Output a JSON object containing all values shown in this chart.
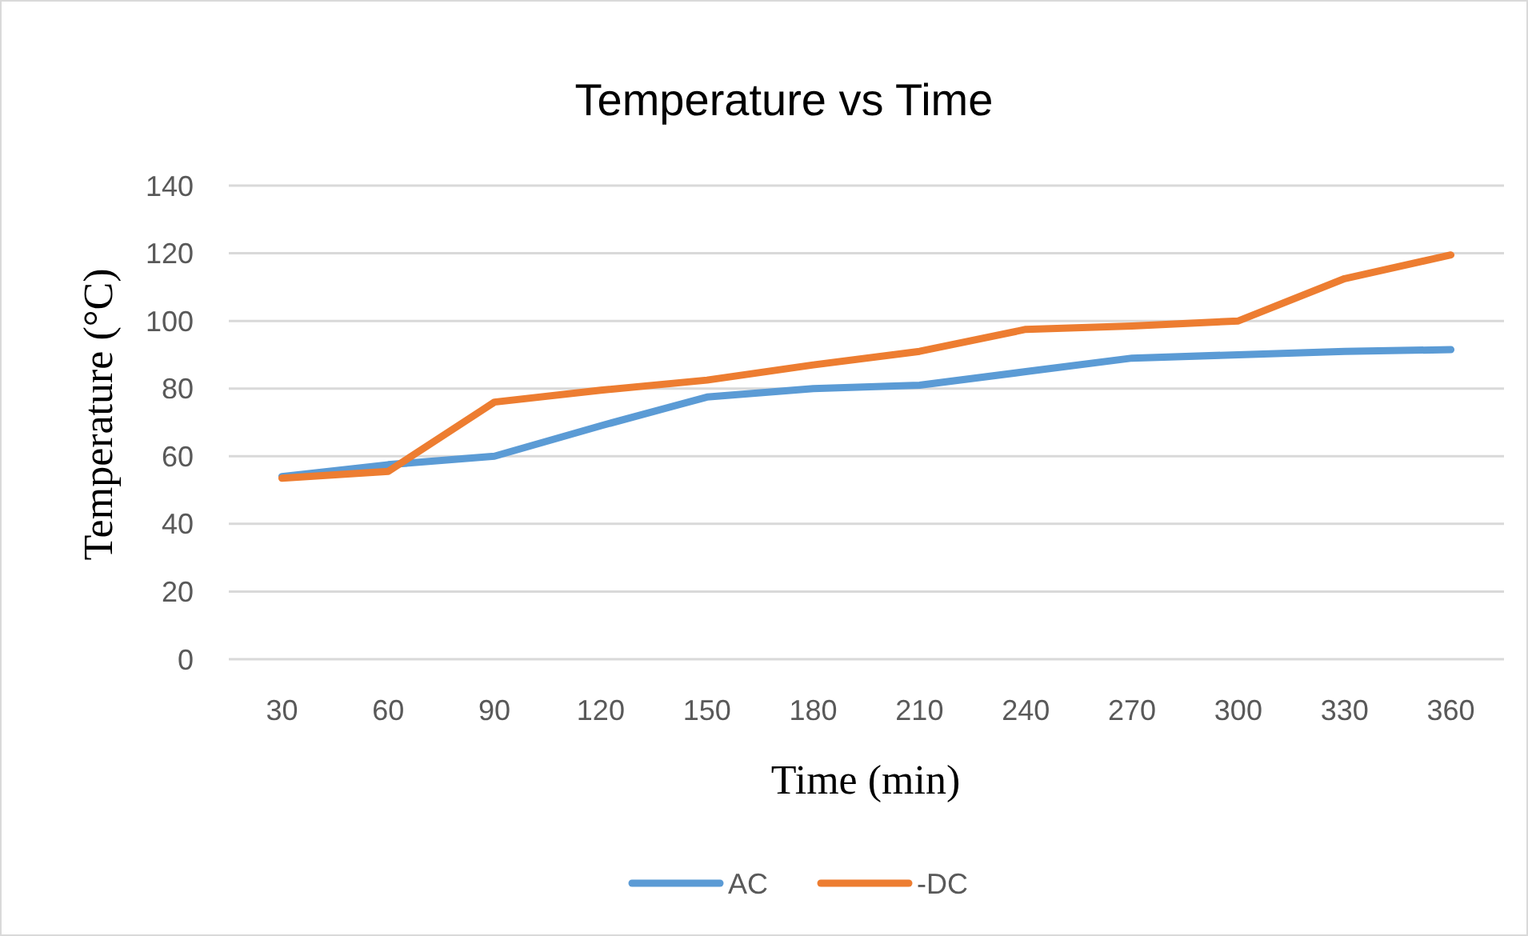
{
  "chart_data": {
    "type": "line",
    "title": "Temperature vs Time",
    "xlabel": "Time (min)",
    "ylabel": "Temperature (°C)",
    "categories": [
      "30",
      "60",
      "90",
      "120",
      "150",
      "180",
      "210",
      "240",
      "270",
      "300",
      "330",
      "360"
    ],
    "series": [
      {
        "name": "AC",
        "color": "#5b9bd5",
        "values": [
          54,
          57.5,
          60,
          69,
          77.5,
          80,
          81,
          85,
          89,
          90,
          91,
          91.5
        ]
      },
      {
        "name": "-DC",
        "color": "#ed7d31",
        "values": [
          53.5,
          55.5,
          76,
          79.5,
          82.5,
          87,
          91,
          97.5,
          98.5,
          100,
          112.5,
          119.5
        ]
      }
    ],
    "ylim": [
      0,
      140
    ],
    "yticks": [
      0,
      20,
      40,
      60,
      80,
      100,
      120,
      140
    ],
    "grid": "y",
    "legend": "bottom",
    "marker": "none",
    "line_style": "solid"
  }
}
